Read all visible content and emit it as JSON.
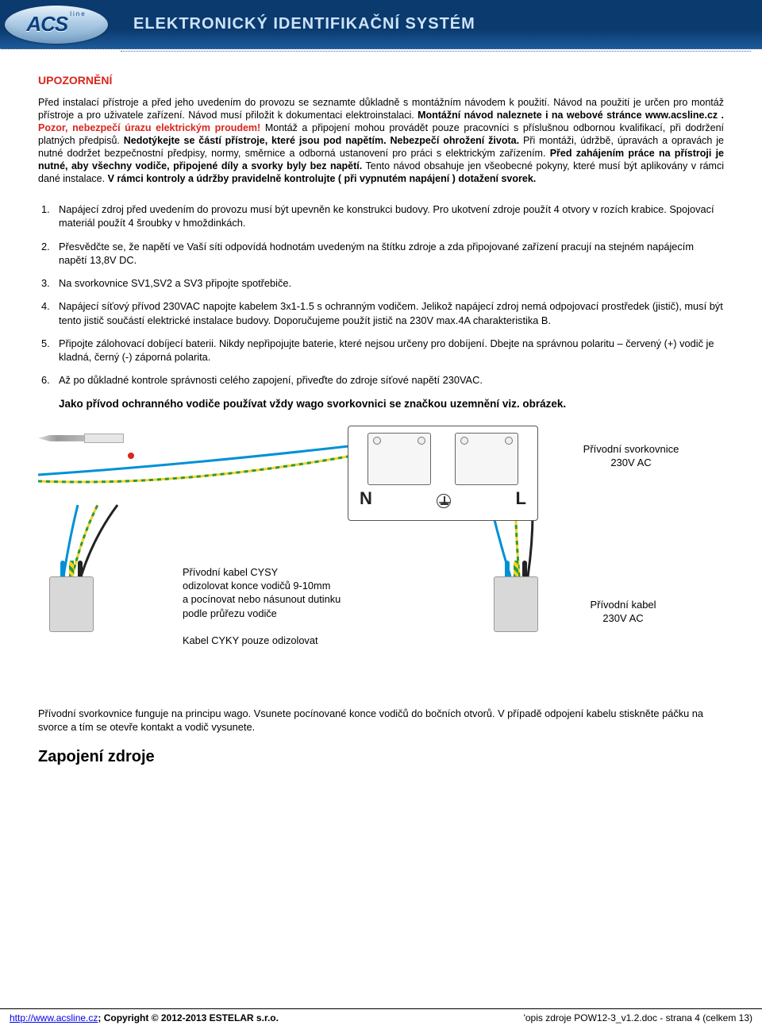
{
  "header": {
    "logo_text": "ACS",
    "logo_sub": "line",
    "title": "ELEKTRONICKÝ IDENTIFIKAČNÍ SYSTÉM"
  },
  "warning": {
    "title": "UPOZORNĚNÍ",
    "body_html": "Před instalací přístroje a před jeho uvedením do provozu se seznamte důkladně s montážním návodem k použití. Návod na použití je určen pro montáž přístroje a pro uživatele zařízení. Návod musí přiložit k dokumentaci elektroinstalaci. <b>Montážní návod naleznete i na webové stránce www.acsline.cz .</b> <b class='red'>Pozor, nebezpečí úrazu elektrickým proudem!</b> Montáž a připojení mohou provádět pouze pracovníci s příslušnou odbornou kvalifikací, při dodržení platných předpisů. <b>Nedotýkejte se částí přístroje, které jsou pod napětím. Nebezpečí ohrožení života.</b> Při montáži, údržbě, úpravách a opravách je nutné dodržet bezpečnostní předpisy, normy, směrnice a odborná ustanovení pro práci s elektrickým zařízením. <b>Před zahájením práce na přístroji je nutné, aby všechny vodiče, připojené díly a svorky byly bez napětí.</b> Tento návod obsahuje jen všeobecné pokyny, které musí být aplikovány v rámci dané instalace. <b>V rámci kontroly a údržby pravidelně kontrolujte ( při vypnutém napájení ) dotažení svorek.</b>"
  },
  "steps": [
    "Napájecí zdroj před uvedením do provozu musí být upevněn ke konstrukci budovy. Pro ukotvení zdroje použít 4 otvory v rozích krabice. Spojovací materiál použít 4 šroubky v hmoždinkách.",
    "Přesvědčte se, že napětí ve Vaší síti odpovídá hodnotám uvedeným na štítku zdroje a zda připojované zařízení pracují na stejném napájecím napětí 13,8V DC.",
    "Na svorkovnice SV1,SV2 a SV3 připojte spotřebiče.",
    "Napájecí síťový přívod 230VAC napojte kabelem 3x1-1.5 s ochranným vodičem. Jelikož napájecí zdroj nemá odpojovací prostředek (jistič), musí být tento jistič součástí elektrické instalace budovy. Doporučujeme použít jistič na 230V max.4A charakteristika B.",
    "Připojte zálohovací dobíjecí baterii. Nikdy nepřipojujte baterie, které nejsou určeny pro dobíjení. Dbejte na správnou polaritu – červený (+) vodič je kladná, černý (-) záporná polarita.",
    "Až po důkladné kontrole správnosti celého zapojení, přiveďte do zdroje síťové napětí 230VAC."
  ],
  "bold_line": "Jako přívod ochranného vodiče používat vždy wago svorkovnici se značkou uzemnění viz. obrázek.",
  "diagram": {
    "terminal": {
      "N": "N",
      "L": "L"
    },
    "label_upper": "Přívodní svorkovnice\n230V AC",
    "label_lower": "Přívodní kabel\n230V AC",
    "cable_text": "Přívodní kabel CYSY\nodizolovat konce vodičů 9-10mm\na pocínovat nebo násunout dutinku\npodle průřezu vodiče\n\nKabel CYKY pouze odizolovat",
    "wire_colors": {
      "N": "#0090d6",
      "PE": "#f4d321",
      "PE_stripe": "#2a9a3d",
      "L": "#222222"
    }
  },
  "bottom_text": "Přívodní svorkovnice funguje na principu wago. Vsunete pocínované konce vodičů do bočních otvorů. V případě odpojení kabelu stiskněte páčku na svorce a tím se otevře kontakt a vodič vysunete.",
  "section_title": "Zapojení zdroje",
  "footer": {
    "left_link": "http://www.acsline.cz",
    "left_rest": "; Copyright © 2012-2013 ESTELAR s.r.o.",
    "right": "'opis zdroje POW12-3_v1.2.doc - strana 4 (celkem 13)"
  }
}
